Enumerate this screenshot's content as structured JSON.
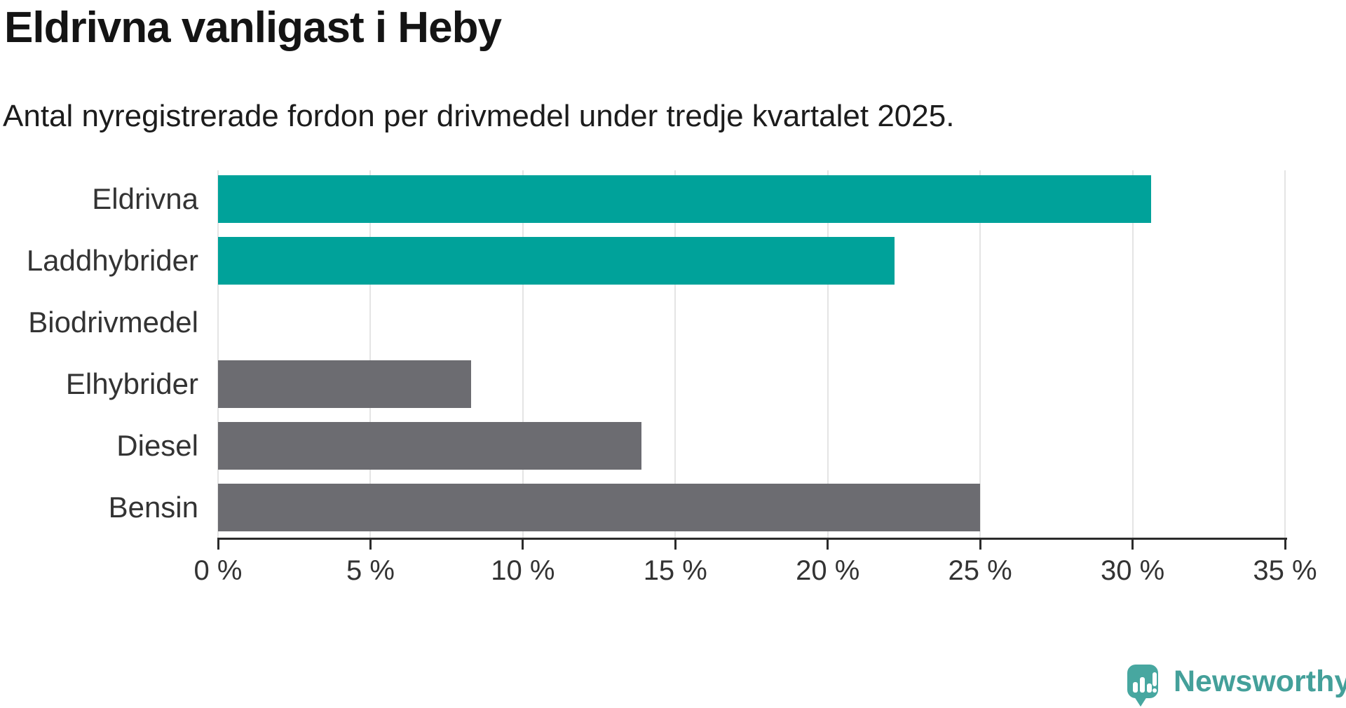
{
  "header": {
    "title": "Eldrivna vanligast i Heby",
    "subtitle": "Antal nyregistrerade fordon per drivmedel under tredje kvartalet 2025."
  },
  "chart_data": {
    "type": "bar",
    "orientation": "horizontal",
    "categories": [
      "Eldrivna",
      "Laddhybrider",
      "Biodrivmedel",
      "Elhybrider",
      "Diesel",
      "Bensin"
    ],
    "values": [
      30.6,
      22.2,
      0,
      8.3,
      13.9,
      25
    ],
    "unit": "%",
    "bar_colors": [
      "#00a29a",
      "#00a29a",
      "#6c6c71",
      "#6c6c71",
      "#6c6c71",
      "#6c6c71"
    ],
    "highlight_color": "#00a29a",
    "default_color": "#6c6c71",
    "xlim": [
      0,
      35
    ],
    "xticks": [
      0,
      5,
      10,
      15,
      20,
      25,
      30,
      35
    ],
    "xtick_labels": [
      "0 %",
      "5 %",
      "10 %",
      "15 %",
      "20 %",
      "25 %",
      "30 %",
      "35 %"
    ],
    "grid": true,
    "gridline_color": "#e4e4e4",
    "axis_color": "#2b2b2b",
    "legend": "none",
    "value_labels": "none"
  },
  "branding": {
    "logo_text": "Newsworthy",
    "logo_color": "#47a7a0",
    "logo_icon": "chart-bars-exclamation-speech-bubble"
  }
}
